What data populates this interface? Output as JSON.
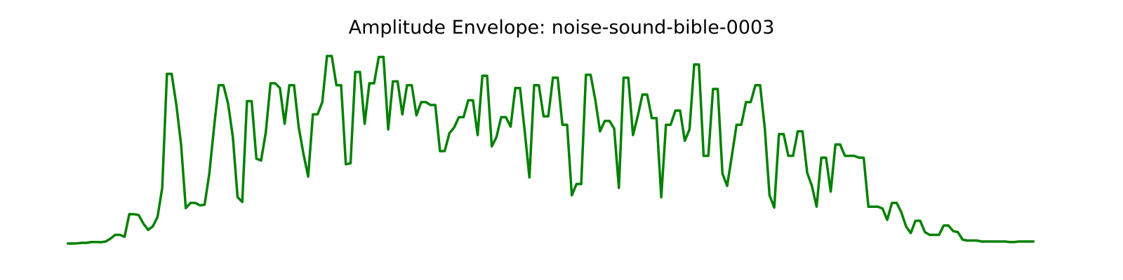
{
  "chart_data": {
    "type": "line",
    "title": "Amplitude Envelope: noise-sound-bible-0003",
    "xlabel": "",
    "ylabel": "",
    "axes_visible": false,
    "grid": false,
    "color": "#008000",
    "ylim": [
      0,
      1
    ],
    "series": [
      {
        "values": [
          0.004,
          0.004,
          0.005,
          0.008,
          0.008,
          0.012,
          0.012,
          0.011,
          0.015,
          0.03,
          0.05,
          0.05,
          0.04,
          0.16,
          0.16,
          0.155,
          0.11,
          0.077,
          0.095,
          0.145,
          0.3,
          0.905,
          0.905,
          0.74,
          0.53,
          0.192,
          0.22,
          0.22,
          0.207,
          0.21,
          0.375,
          0.62,
          0.845,
          0.845,
          0.745,
          0.57,
          0.25,
          0.225,
          0.76,
          0.76,
          0.455,
          0.445,
          0.595,
          0.855,
          0.855,
          0.83,
          0.64,
          0.845,
          0.845,
          0.62,
          0.48,
          0.36,
          0.69,
          0.69,
          0.755,
          1.0,
          1.0,
          0.845,
          0.845,
          0.425,
          0.43,
          0.915,
          0.915,
          0.64,
          0.855,
          0.855,
          0.995,
          0.995,
          0.61,
          0.865,
          0.865,
          0.69,
          0.845,
          0.845,
          0.685,
          0.755,
          0.755,
          0.74,
          0.74,
          0.495,
          0.495,
          0.59,
          0.62,
          0.675,
          0.675,
          0.765,
          0.765,
          0.58,
          0.895,
          0.895,
          0.52,
          0.57,
          0.675,
          0.675,
          0.625,
          0.83,
          0.83,
          0.6,
          0.355,
          0.845,
          0.845,
          0.68,
          0.68,
          0.885,
          0.885,
          0.635,
          0.635,
          0.26,
          0.32,
          0.32,
          0.9,
          0.9,
          0.765,
          0.6,
          0.655,
          0.655,
          0.615,
          0.3,
          0.885,
          0.885,
          0.58,
          0.68,
          0.795,
          0.795,
          0.67,
          0.67,
          0.25,
          0.635,
          0.635,
          0.71,
          0.71,
          0.55,
          0.61,
          0.955,
          0.955,
          0.47,
          0.47,
          0.825,
          0.825,
          0.375,
          0.31,
          0.47,
          0.635,
          0.635,
          0.755,
          0.755,
          0.845,
          0.845,
          0.615,
          0.26,
          0.195,
          0.585,
          0.585,
          0.47,
          0.47,
          0.6,
          0.6,
          0.38,
          0.31,
          0.2,
          0.46,
          0.46,
          0.28,
          0.53,
          0.53,
          0.47,
          0.47,
          0.47,
          0.46,
          0.46,
          0.2,
          0.2,
          0.2,
          0.19,
          0.13,
          0.22,
          0.22,
          0.17,
          0.095,
          0.06,
          0.125,
          0.125,
          0.065,
          0.05,
          0.05,
          0.05,
          0.1,
          0.1,
          0.07,
          0.065,
          0.025,
          0.02,
          0.02,
          0.02,
          0.015,
          0.015,
          0.015,
          0.015,
          0.015,
          0.015,
          0.012,
          0.012,
          0.015,
          0.015,
          0.015,
          0.015
        ]
      }
    ]
  }
}
